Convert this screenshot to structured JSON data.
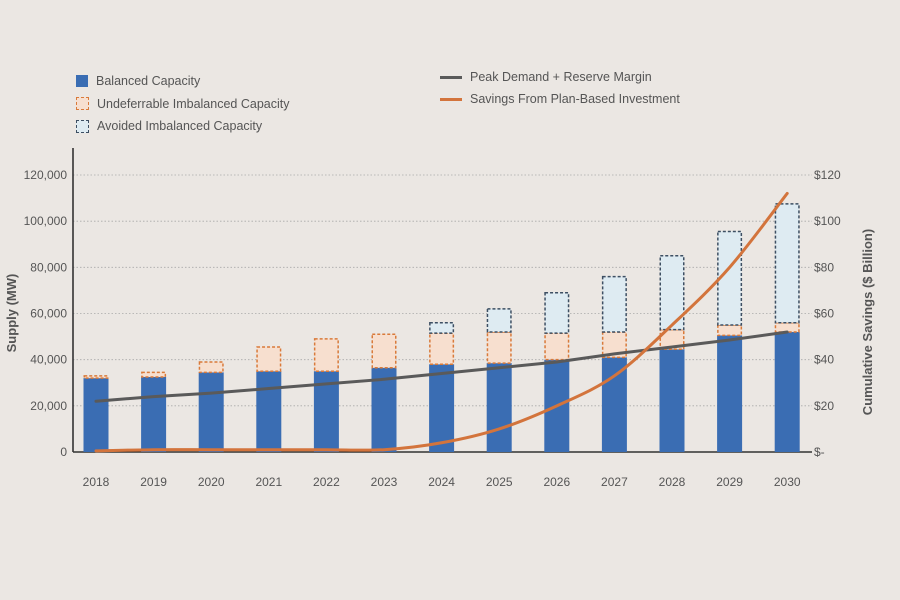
{
  "chart_data": {
    "type": "bar",
    "categories": [
      "2018",
      "2019",
      "2020",
      "2021",
      "2022",
      "2023",
      "2024",
      "2025",
      "2026",
      "2027",
      "2028",
      "2029",
      "2030"
    ],
    "series": [
      {
        "name": "Balanced Capacity",
        "kind": "stacked-bar",
        "axis": "left",
        "values": [
          32000,
          32500,
          34500,
          35000,
          35000,
          36500,
          38000,
          38500,
          40000,
          41000,
          44500,
          50500,
          52000
        ]
      },
      {
        "name": "Undeferrable Imbalanced Capacity",
        "kind": "stacked-bar",
        "axis": "left",
        "values": [
          1000,
          2000,
          4500,
          10500,
          14000,
          14500,
          13500,
          13500,
          11500,
          11000,
          8500,
          4500,
          4000
        ]
      },
      {
        "name": "Avoided Imbalanced Capacity",
        "kind": "stacked-bar",
        "axis": "left",
        "values": [
          0,
          0,
          0,
          0,
          0,
          0,
          4500,
          10000,
          17500,
          24000,
          32000,
          40500,
          51500
        ]
      },
      {
        "name": "Peak Demand + Reserve Margin",
        "kind": "line",
        "axis": "left",
        "values": [
          22000,
          24000,
          25500,
          27500,
          29500,
          31500,
          34000,
          36500,
          39000,
          42500,
          45500,
          48500,
          52000
        ]
      },
      {
        "name": "Savings From Plan-Based Investment",
        "kind": "line",
        "axis": "right",
        "values": [
          0.5,
          1,
          1,
          1,
          1,
          1,
          4,
          10,
          20,
          33,
          55,
          80,
          112
        ]
      }
    ],
    "ylabel": "Supply (MW)",
    "y2label": "Cumulative Savings ($ Billion)",
    "ylim": [
      0,
      120000
    ],
    "y2lim": [
      0,
      120
    ],
    "yticks": [
      "0",
      "20,000",
      "40,000",
      "60,000",
      "80,000",
      "100,000",
      "120,000"
    ],
    "y2ticks": [
      "$-",
      "$20",
      "$40",
      "$60",
      "$80",
      "$100",
      "$120"
    ],
    "grid": "horizontal dotted",
    "legend_position": "top",
    "colors": {
      "balanced": "#3a6db3",
      "undeferrable_fill": "#f7dfcf",
      "undeferrable_border": "#d97a3a",
      "avoided_fill": "#deebf2",
      "avoided_border": "#3d4f63",
      "peak_line": "#5a5a5a",
      "savings_line": "#d3743c",
      "axis": "#333333",
      "grid": "#a9a9a9"
    }
  }
}
